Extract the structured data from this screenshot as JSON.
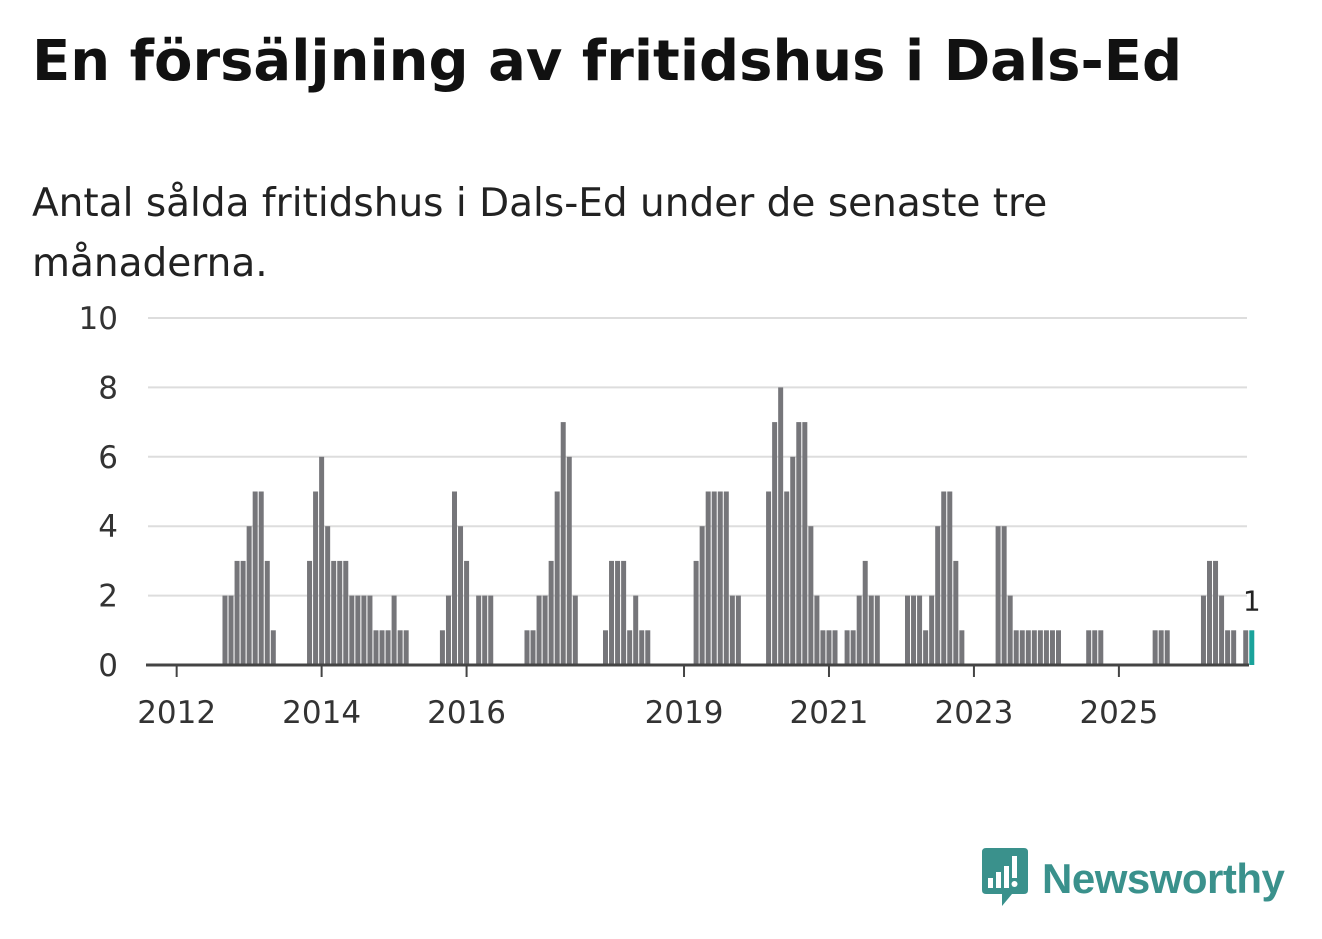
{
  "header": {
    "title": "En försäljning av fritidshus i Dals-Ed",
    "subtitle": "Antal sålda fritidshus i Dals-Ed under de senaste tre månaderna."
  },
  "brand": {
    "name": "Newsworthy",
    "icon": "newsworthy-logo-icon",
    "color": "#3a918c"
  },
  "chart_data": {
    "type": "bar",
    "title": "",
    "xlabel": "",
    "ylabel": "",
    "ylim": [
      0,
      10
    ],
    "yticks": [
      0,
      2,
      4,
      6,
      8,
      10
    ],
    "grid": true,
    "bar_color": "#76767a",
    "highlight_color": "#1aa39b",
    "x_tick_labels": [
      {
        "label": "2012",
        "index": 4
      },
      {
        "label": "2014",
        "index": 28
      },
      {
        "label": "2016",
        "index": 52
      },
      {
        "label": "2019",
        "index": 88
      },
      {
        "label": "2021",
        "index": 112
      },
      {
        "label": "2023",
        "index": 136
      },
      {
        "label": "2025",
        "index": 160
      }
    ],
    "start_period": "2011-08",
    "values": [
      0,
      0,
      0,
      0,
      0,
      0,
      0,
      0,
      0,
      0,
      0,
      0,
      2,
      2,
      3,
      3,
      4,
      5,
      5,
      3,
      1,
      0,
      0,
      0,
      0,
      0,
      3,
      5,
      6,
      4,
      3,
      3,
      3,
      2,
      2,
      2,
      2,
      1,
      1,
      1,
      2,
      1,
      1,
      0,
      0,
      0,
      0,
      0,
      1,
      2,
      5,
      4,
      3,
      0,
      2,
      2,
      2,
      0,
      0,
      0,
      0,
      0,
      1,
      1,
      2,
      2,
      3,
      5,
      7,
      6,
      2,
      0,
      0,
      0,
      0,
      1,
      3,
      3,
      3,
      1,
      2,
      1,
      1,
      0,
      0,
      0,
      0,
      0,
      0,
      0,
      3,
      4,
      5,
      5,
      5,
      5,
      2,
      2,
      0,
      0,
      0,
      0,
      5,
      7,
      8,
      5,
      6,
      7,
      7,
      4,
      2,
      1,
      1,
      1,
      0,
      1,
      1,
      2,
      3,
      2,
      2,
      0,
      0,
      0,
      0,
      2,
      2,
      2,
      1,
      2,
      4,
      5,
      5,
      3,
      1,
      0,
      0,
      0,
      0,
      0,
      4,
      4,
      2,
      1,
      1,
      1,
      1,
      1,
      1,
      1,
      1,
      0,
      0,
      0,
      0,
      1,
      1,
      1,
      0,
      0,
      0,
      0,
      0,
      0,
      0,
      0,
      1,
      1,
      1,
      0,
      0,
      0,
      0,
      0,
      2,
      3,
      3,
      2,
      1,
      1,
      0,
      1,
      1
    ],
    "highlight_last": true,
    "last_value_label": "1"
  }
}
